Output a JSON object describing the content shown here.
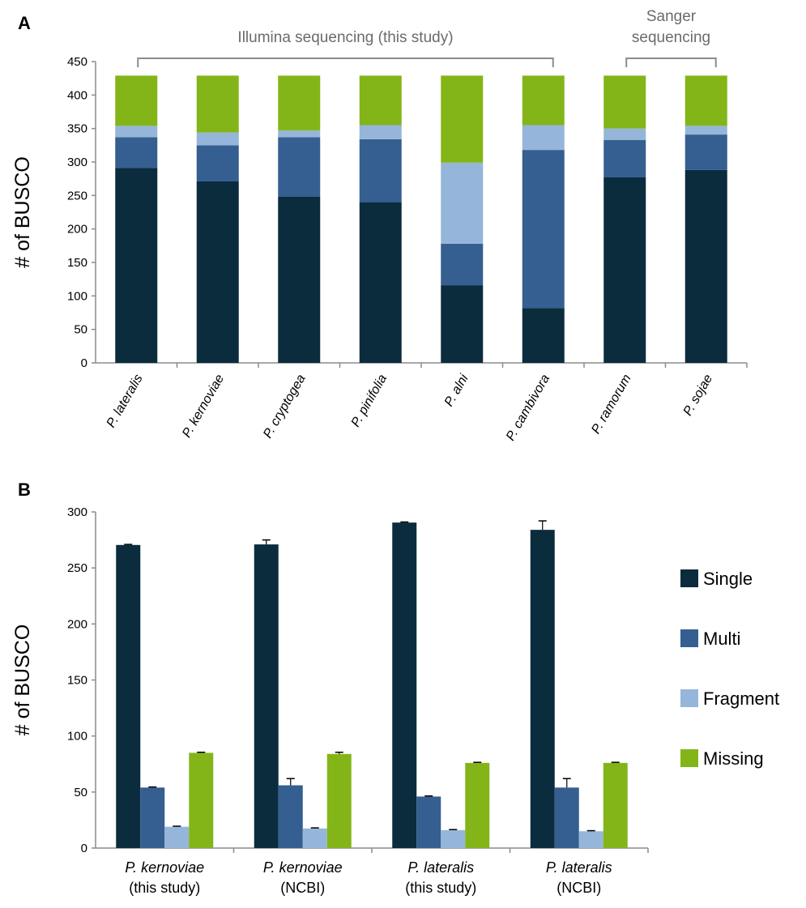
{
  "colors": {
    "Single": "#0b2c3d",
    "Multi": "#355f91",
    "Fragment": "#95b6da",
    "Missing": "#83b519",
    "bracket": "#8c8c8c",
    "axis": "#8c8c8c"
  },
  "chart_data": [
    {
      "panel": "A",
      "type": "bar",
      "stacked": true,
      "ylabel": "# of BUSCO",
      "ylim": [
        0,
        450
      ],
      "yticks": [
        0,
        50,
        100,
        150,
        200,
        250,
        300,
        350,
        400,
        450
      ],
      "categories": [
        "P. lateralis",
        "P. kernoviae",
        "P. cryptogea",
        "P. pinifolia",
        "P. alni",
        "P. cambivora",
        "P. ramorum",
        "P. sojae"
      ],
      "series": [
        {
          "name": "Single",
          "values": [
            291,
            271,
            248,
            240,
            116,
            82,
            277,
            288
          ]
        },
        {
          "name": "Multi",
          "values": [
            46,
            54,
            89,
            94,
            62,
            236,
            56,
            53
          ]
        },
        {
          "name": "Fragment",
          "values": [
            17,
            19,
            10,
            21,
            121,
            37,
            17,
            13
          ]
        },
        {
          "name": "Missing",
          "values": [
            75,
            85,
            82,
            74,
            130,
            74,
            79,
            75
          ]
        }
      ],
      "annotations": [
        {
          "label": "Illumina sequencing (this study)",
          "from": 0,
          "to": 5
        },
        {
          "label": "Sanger sequencing",
          "from": 6,
          "to": 7
        }
      ]
    },
    {
      "panel": "B",
      "type": "bar",
      "stacked": false,
      "ylabel": "# of BUSCO",
      "ylim": [
        0,
        300
      ],
      "yticks": [
        0,
        50,
        100,
        150,
        200,
        250,
        300
      ],
      "categories": [
        {
          "species": "P. kernoviae",
          "source": "(this study)"
        },
        {
          "species": "P. kernoviae",
          "source": "(NCBI)"
        },
        {
          "species": "P. lateralis",
          "source": "(this study)"
        },
        {
          "species": "P. lateralis",
          "source": "(NCBI)"
        }
      ],
      "series": [
        {
          "name": "Single",
          "values": [
            270.5,
            271,
            290.5,
            284
          ],
          "errors": [
            0.5,
            4,
            0.5,
            8
          ]
        },
        {
          "name": "Multi",
          "values": [
            54,
            56,
            46,
            54
          ],
          "errors": [
            0.5,
            6,
            0.5,
            8
          ]
        },
        {
          "name": "Fragment",
          "values": [
            19,
            17.5,
            16,
            15
          ],
          "errors": [
            0.5,
            0.5,
            0.5,
            0.5
          ]
        },
        {
          "name": "Missing",
          "values": [
            85,
            84,
            76,
            76
          ],
          "errors": [
            0.5,
            1.5,
            0.5,
            0.5
          ]
        }
      ],
      "legend": {
        "position": "right",
        "entries": [
          "Single",
          "Multi",
          "Fragment",
          "Missing"
        ]
      }
    }
  ]
}
